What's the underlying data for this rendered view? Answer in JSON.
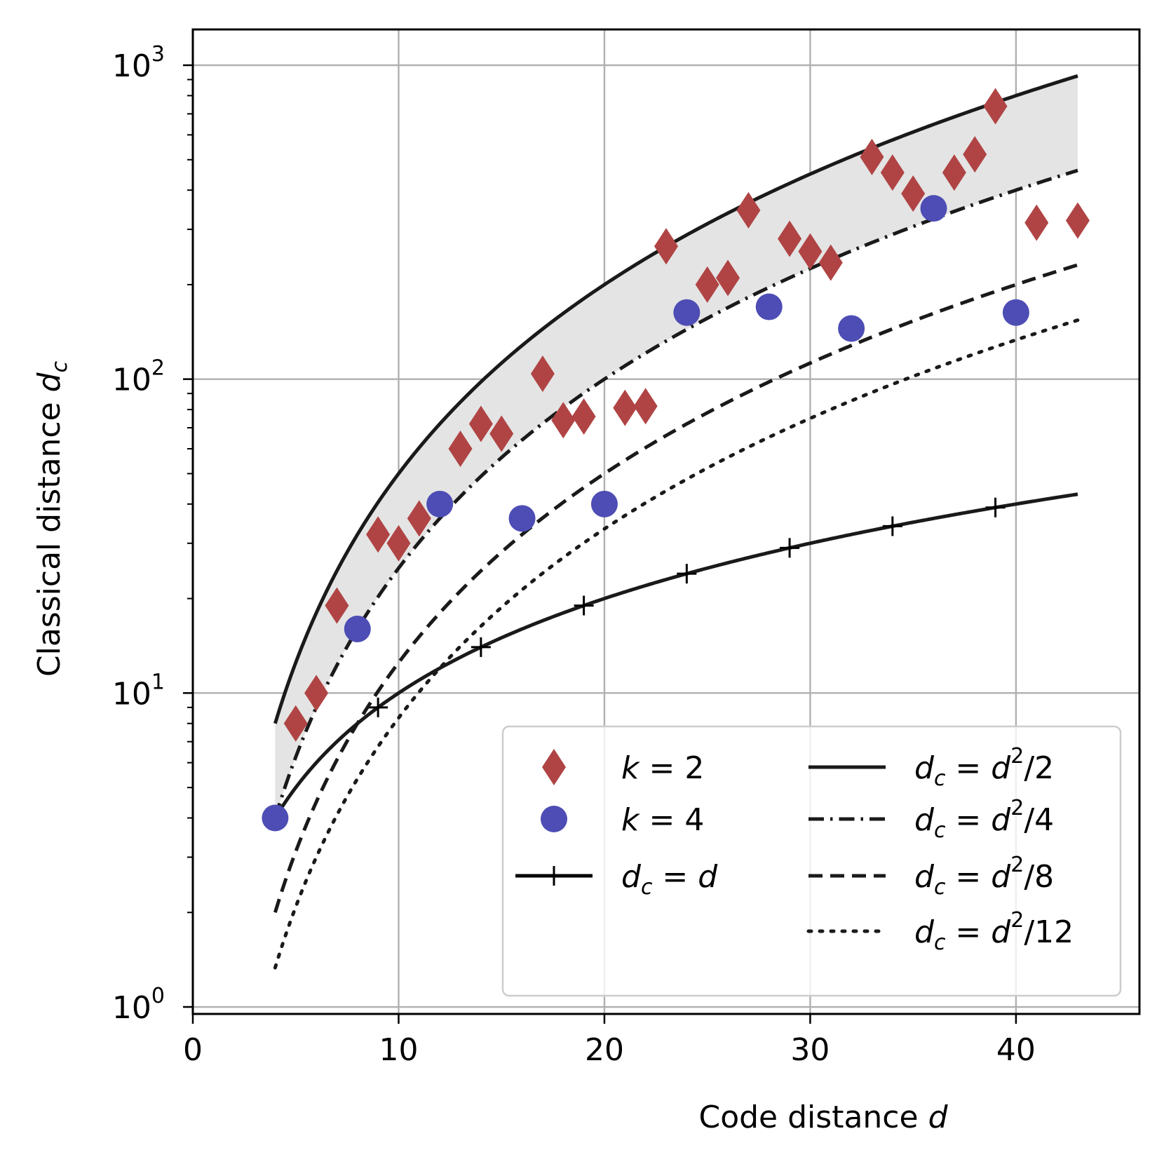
{
  "chart_data": {
    "type": "scatter",
    "xlabel": "Code distance",
    "xlabel_var": "d",
    "ylabel": "Classical distance",
    "ylabel_var": "d",
    "ylabel_sub": "c",
    "xlim": [
      0,
      46
    ],
    "ylim": [
      0.95,
      1300
    ],
    "yscale": "log",
    "grid": true,
    "legend_position": "lower-right",
    "x_ticks": [
      0,
      10,
      20,
      30,
      40
    ],
    "y_ticks": [
      {
        "value": 1,
        "base": "10",
        "exp": "0"
      },
      {
        "value": 10,
        "base": "10",
        "exp": "1"
      },
      {
        "value": 100,
        "base": "10",
        "exp": "2"
      },
      {
        "value": 1000,
        "base": "10",
        "exp": "3"
      }
    ],
    "shaded_band": {
      "x_from": 4,
      "x_to": 43,
      "lower_divisor": 4,
      "upper_divisor": 2,
      "color": "#e4e4e4"
    },
    "scatter_series": [
      {
        "name": "k = 2",
        "legend_lhs": "k",
        "legend_rhs": "2",
        "marker": "diamond",
        "color": "#b04444",
        "points": [
          [
            5,
            8
          ],
          [
            6,
            10
          ],
          [
            7,
            19
          ],
          [
            9,
            32
          ],
          [
            10,
            30
          ],
          [
            11,
            36
          ],
          [
            13,
            60
          ],
          [
            14,
            72
          ],
          [
            15,
            67
          ],
          [
            17,
            104
          ],
          [
            18,
            74
          ],
          [
            19,
            76
          ],
          [
            21,
            81
          ],
          [
            22,
            82
          ],
          [
            23,
            265
          ],
          [
            25,
            200
          ],
          [
            26,
            210
          ],
          [
            27,
            345
          ],
          [
            29,
            280
          ],
          [
            30,
            255
          ],
          [
            31,
            235
          ],
          [
            33,
            510
          ],
          [
            34,
            455
          ],
          [
            35,
            390
          ],
          [
            37,
            455
          ],
          [
            38,
            520
          ],
          [
            39,
            740
          ],
          [
            41,
            315
          ],
          [
            43,
            320
          ]
        ]
      },
      {
        "name": "k = 4",
        "legend_lhs": "k",
        "legend_rhs": "4",
        "marker": "circle",
        "color": "#4d4db5",
        "points": [
          [
            4,
            4
          ],
          [
            8,
            16
          ],
          [
            12,
            40
          ],
          [
            16,
            36
          ],
          [
            20,
            40
          ],
          [
            24,
            163
          ],
          [
            28,
            170
          ],
          [
            32,
            145
          ],
          [
            36,
            350
          ],
          [
            40,
            163
          ]
        ]
      }
    ],
    "line_series": [
      {
        "name": "d_c = d",
        "divisor": null,
        "style": "solid-plus",
        "x_from": 4,
        "x_to": 43,
        "plus_at": [
          4,
          9,
          14,
          19,
          24,
          29,
          34,
          39
        ],
        "legend_rhs": "d"
      },
      {
        "name": "d_c = d^2/2",
        "divisor": 2,
        "style": "solid",
        "x_from": 4,
        "x_to": 43,
        "legend_rhs_den": "2"
      },
      {
        "name": "d_c = d^2/4",
        "divisor": 4,
        "style": "dashdot",
        "x_from": 4,
        "x_to": 43,
        "legend_rhs_den": "4"
      },
      {
        "name": "d_c = d^2/8",
        "divisor": 8,
        "style": "dashed",
        "x_from": 4,
        "x_to": 43,
        "legend_rhs_den": "8"
      },
      {
        "name": "d_c = d^2/12",
        "divisor": 12,
        "style": "dotted",
        "x_from": 4,
        "x_to": 43,
        "legend_rhs_den": "12"
      }
    ],
    "legend": {
      "eq": "=",
      "lhs_var": "d",
      "lhs_sub": "c",
      "sq_var": "d",
      "sq_exp": "2",
      "slash": "/"
    }
  }
}
